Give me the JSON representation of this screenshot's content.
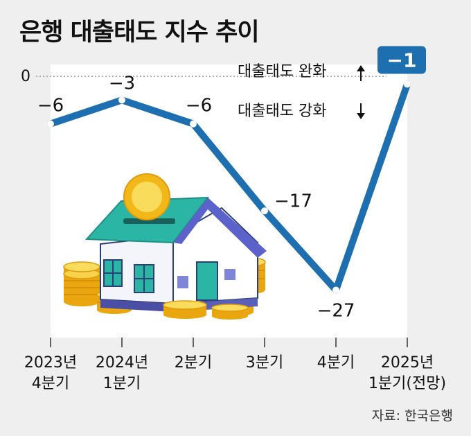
{
  "title": "은행 대출태도 지수 추이",
  "source": "자료: 한국은행",
  "annotations": {
    "easing": "대출태도 완화",
    "tightening": "대출태도 강화"
  },
  "colors": {
    "line": "#1d6fb0",
    "plot_bg": "#ffffff",
    "badge": "#1d6fb0",
    "background": "#efefef"
  },
  "illustration": "house-with-coins-icon",
  "chart_data": {
    "type": "line",
    "categories": [
      [
        "2023년",
        "4분기"
      ],
      [
        "2024년",
        "1분기"
      ],
      [
        "2분기"
      ],
      [
        "3분기"
      ],
      [
        "4분기"
      ],
      [
        "2025년",
        "1분기(전망)"
      ]
    ],
    "values": [
      -6,
      -3,
      -6,
      -17,
      -27,
      -1
    ],
    "data_labels": [
      "−6",
      "−3",
      "−6",
      "−17",
      "−27",
      "−1"
    ],
    "highlight_index": 5,
    "reference_line": {
      "y": 0,
      "label": "0"
    },
    "ylim": [
      -33,
      1.5
    ],
    "title": "은행 대출태도 지수 추이",
    "xlabel": "",
    "ylabel": ""
  }
}
